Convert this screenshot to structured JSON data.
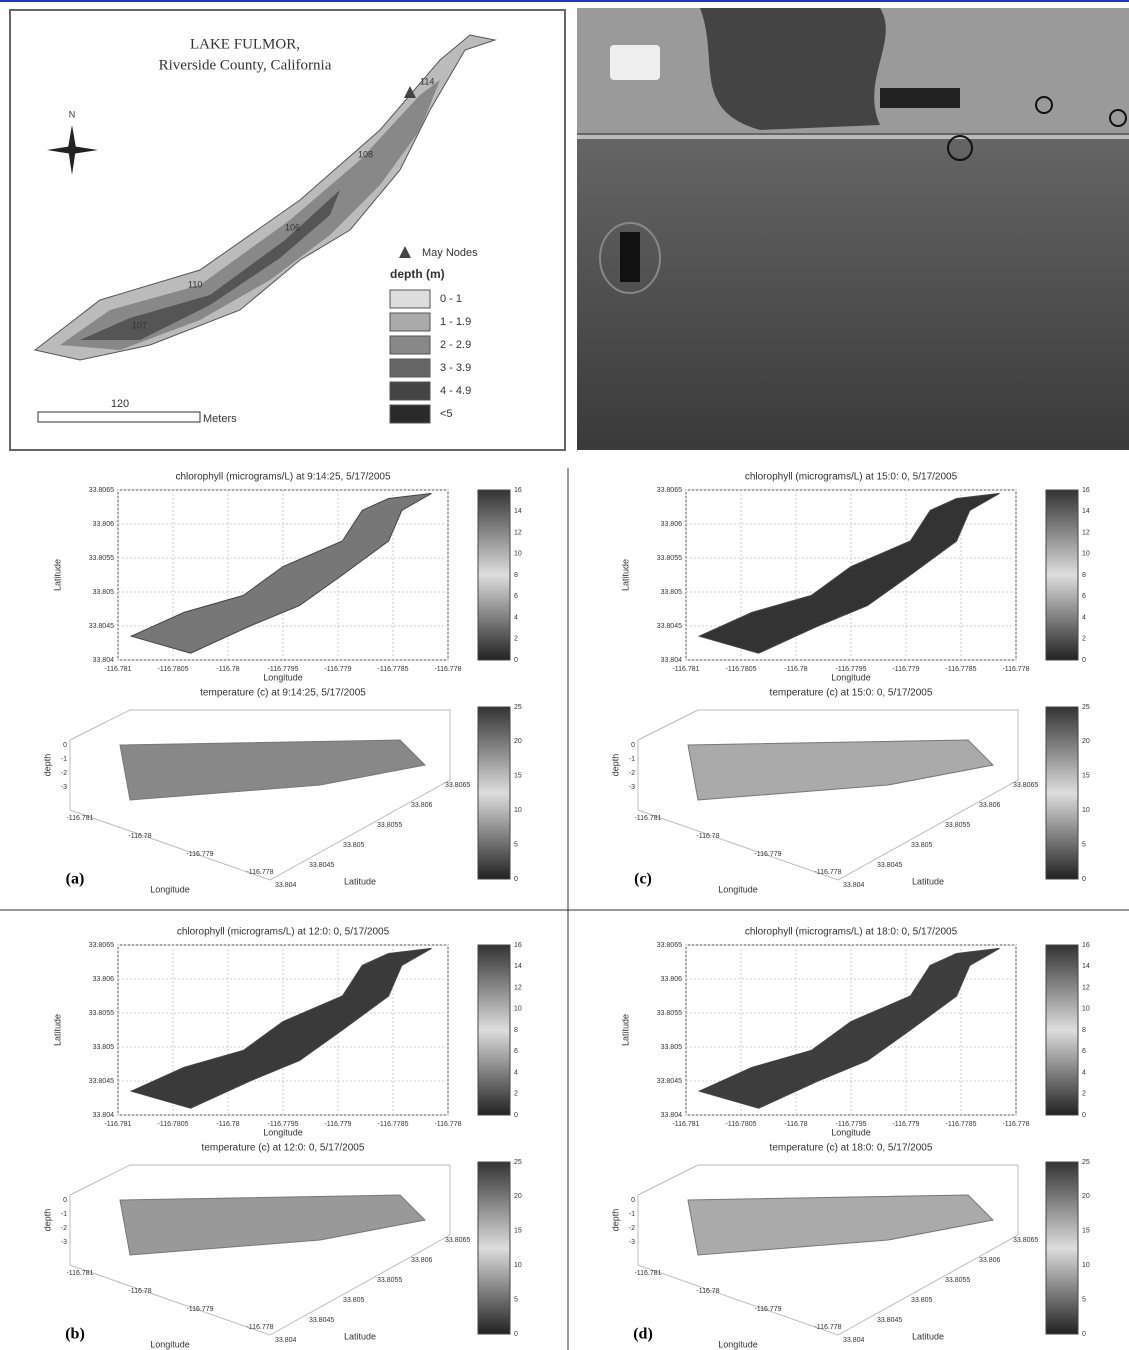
{
  "map": {
    "title": "LAKE FULMOR,",
    "subtitle": "Riverside County, California",
    "north": "N",
    "nodes": [
      "114",
      "108",
      "106",
      "110",
      "107"
    ],
    "legend_nodes": "May Nodes",
    "legend_title": "depth (m)",
    "depth_classes": [
      "0 - 1",
      "1 - 1.9",
      "2 - 2.9",
      "3 - 3.9",
      "4 - 4.9",
      "<5"
    ],
    "scale_value": "120",
    "scale_unit": "Meters"
  },
  "panels": [
    {
      "label": "(a)",
      "chl_title": "chlorophyll (micrograms/L) at 9:14:25, 5/17/2005",
      "temp_title": "temperature (c) at 9:14:25, 5/17/2005",
      "x_label": "Longitude",
      "y_label": "Latitude",
      "depth_label": "depth",
      "lat_label": "Latitude",
      "lon_ticks": [
        "-116.781",
        "-116.7805",
        "-116.78",
        "-116.7795",
        "-116.779",
        "-116.7785",
        "-116.778"
      ],
      "lat_ticks": [
        "33.8065",
        "33.806",
        "33.8055",
        "33.805",
        "33.8045",
        "33.804"
      ],
      "chl_ticks": [
        "16",
        "14",
        "12",
        "10",
        "8",
        "6",
        "4",
        "2",
        "0"
      ],
      "temp_ticks": [
        "25",
        "20",
        "15",
        "10",
        "5",
        "0"
      ],
      "depth_ticks": [
        "0",
        "-1",
        "-2",
        "-3"
      ],
      "lon3d_ticks": [
        "-116.781",
        "-116.78",
        "-116.779",
        "-116.778"
      ],
      "lat3d_ticks": [
        "33.804",
        "33.8045",
        "33.805",
        "33.8055",
        "33.806",
        "33.8065"
      ]
    },
    {
      "label": "(b)",
      "chl_title": "chlorophyll (micrograms/L) at 12:0: 0, 5/17/2005",
      "temp_title": "temperature (c) at 12:0: 0, 5/17/2005",
      "x_label": "Longitude",
      "y_label": "Latitude",
      "depth_label": "depth",
      "lat_label": "Latitude",
      "lon_ticks": [
        "-116.781",
        "-116.7805",
        "-116.78",
        "-116.7795",
        "-116.779",
        "-116.7785",
        "-116.778"
      ],
      "lat_ticks": [
        "33.8065",
        "33.806",
        "33.8055",
        "33.805",
        "33.8045",
        "33.804"
      ],
      "chl_ticks": [
        "16",
        "14",
        "12",
        "10",
        "8",
        "6",
        "4",
        "2",
        "0"
      ],
      "temp_ticks": [
        "25",
        "20",
        "15",
        "10",
        "5",
        "0"
      ],
      "depth_ticks": [
        "0",
        "-1",
        "-2",
        "-3"
      ],
      "lon3d_ticks": [
        "-116.781",
        "-116.78",
        "-116.779",
        "-116.778"
      ],
      "lat3d_ticks": [
        "33.804",
        "33.8045",
        "33.805",
        "33.8055",
        "33.806",
        "33.8065"
      ]
    },
    {
      "label": "(c)",
      "chl_title": "chlorophyll (micrograms/L) at 15:0: 0, 5/17/2005",
      "temp_title": "temperature (c) at 15:0: 0, 5/17/2005",
      "x_label": "Longitude",
      "y_label": "Latitude",
      "depth_label": "depth",
      "lat_label": "Latitude",
      "lon_ticks": [
        "-116.781",
        "-116.7805",
        "-116.78",
        "-116.7795",
        "-116.779",
        "-116.7785",
        "-116.778"
      ],
      "lat_ticks": [
        "33.8065",
        "33.806",
        "33.8055",
        "33.805",
        "33.8045",
        "33.804"
      ],
      "chl_ticks": [
        "16",
        "14",
        "12",
        "10",
        "8",
        "6",
        "4",
        "2",
        "0"
      ],
      "temp_ticks": [
        "25",
        "20",
        "15",
        "10",
        "5",
        "0"
      ],
      "depth_ticks": [
        "0",
        "-1",
        "-2",
        "-3"
      ],
      "lon3d_ticks": [
        "-116.781",
        "-116.78",
        "-116.779",
        "-116.778"
      ],
      "lat3d_ticks": [
        "33.804",
        "33.8045",
        "33.805",
        "33.8055",
        "33.806",
        "33.8065"
      ]
    },
    {
      "label": "(d)",
      "chl_title": "chlorophyll (micrograms/L) at 18:0: 0, 5/17/2005",
      "temp_title": "temperature (c) at 18:0: 0, 5/17/2005",
      "x_label": "Longitude",
      "y_label": "Latitude",
      "depth_label": "depth",
      "lat_label": "Latitude",
      "lon_ticks": [
        "-116.781",
        "-116.7805",
        "-116.78",
        "-116.7795",
        "-116.779",
        "-116.7785",
        "-116.778"
      ],
      "lat_ticks": [
        "33.8065",
        "33.806",
        "33.8055",
        "33.805",
        "33.8045",
        "33.804"
      ],
      "chl_ticks": [
        "16",
        "14",
        "12",
        "10",
        "8",
        "6",
        "4",
        "2",
        "0"
      ],
      "temp_ticks": [
        "25",
        "20",
        "15",
        "10",
        "5",
        "0"
      ],
      "depth_ticks": [
        "0",
        "-1",
        "-2",
        "-3"
      ],
      "lon3d_ticks": [
        "-116.781",
        "-116.78",
        "-116.779",
        "-116.778"
      ],
      "lat3d_ticks": [
        "33.804",
        "33.8045",
        "33.805",
        "33.8055",
        "33.806",
        "33.8065"
      ]
    }
  ]
}
